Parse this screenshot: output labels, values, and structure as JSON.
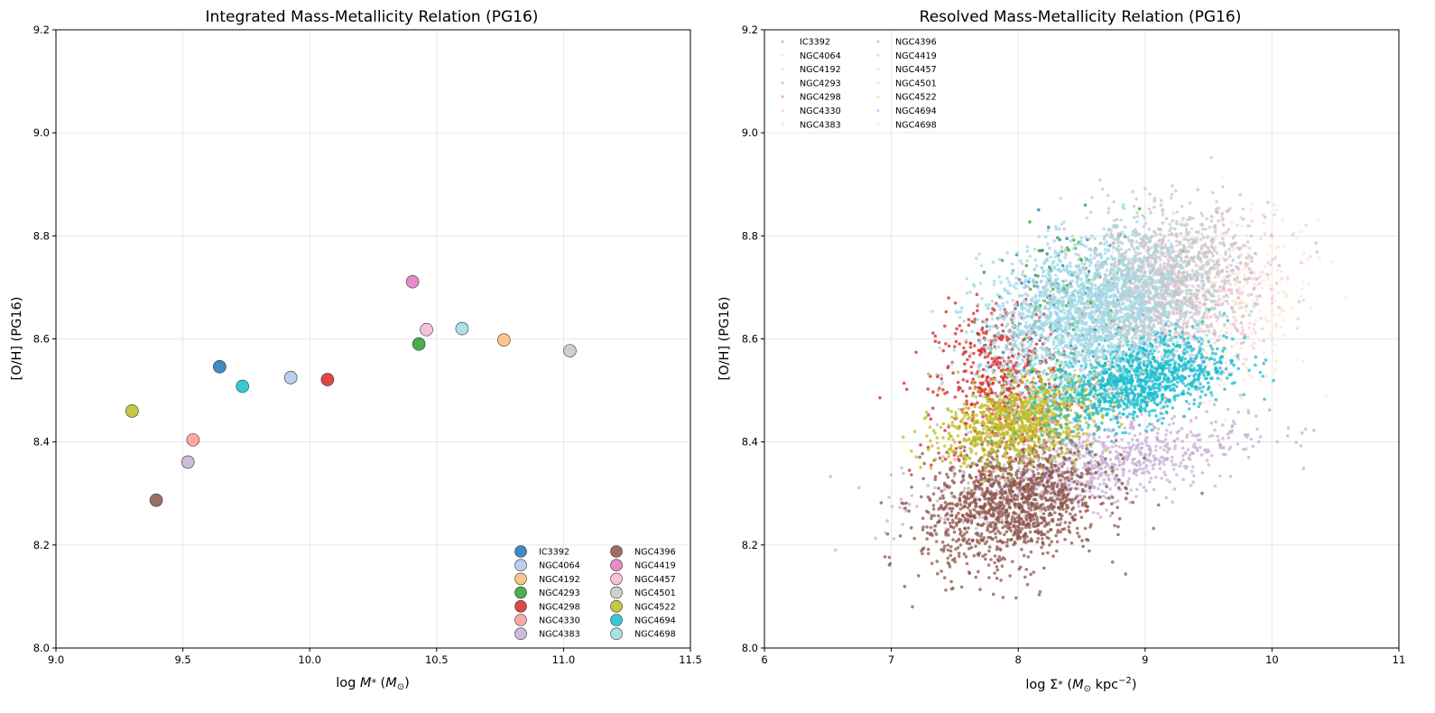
{
  "colors": {
    "IC3392": "#1f77b4",
    "NGC4064": "#aec7e8",
    "NGC4192": "#ffbb78",
    "NGC4293": "#2ca02c",
    "NGC4298": "#d62728",
    "NGC4330": "#ff9896",
    "NGC4383": "#c5b0d5",
    "NGC4396": "#8c564b",
    "NGC4419": "#e377c2",
    "NGC4457": "#f7b6d2",
    "NGC4501": "#c7c7c7",
    "NGC4522": "#bcbd22",
    "NGC4694": "#17becf",
    "NGC4698": "#9edae5"
  },
  "chart_data": [
    {
      "type": "scatter",
      "title": "Integrated Mass-Metallicity Relation (PG16)",
      "xlabel": "log M* (M☉)",
      "ylabel": "[O/H] (PG16)",
      "xlim": [
        9.0,
        11.5
      ],
      "ylim": [
        8.0,
        9.2
      ],
      "xticks": [
        "9.0",
        "9.5",
        "10.0",
        "10.5",
        "11.0",
        "11.5"
      ],
      "yticks": [
        "8.0",
        "8.2",
        "8.4",
        "8.6",
        "8.8",
        "9.0",
        "9.2"
      ],
      "grid": true,
      "legend_position": "lower-right",
      "series": [
        {
          "name": "IC3392",
          "x": 9.645,
          "y": 8.546
        },
        {
          "name": "NGC4064",
          "x": 9.925,
          "y": 8.525
        },
        {
          "name": "NGC4192",
          "x": 10.765,
          "y": 8.598
        },
        {
          "name": "NGC4293",
          "x": 10.43,
          "y": 8.59
        },
        {
          "name": "NGC4298",
          "x": 10.07,
          "y": 8.521
        },
        {
          "name": "NGC4330",
          "x": 9.54,
          "y": 8.404
        },
        {
          "name": "NGC4383",
          "x": 9.52,
          "y": 8.361
        },
        {
          "name": "NGC4396",
          "x": 9.395,
          "y": 8.287
        },
        {
          "name": "NGC4419",
          "x": 10.405,
          "y": 8.711
        },
        {
          "name": "NGC4457",
          "x": 10.46,
          "y": 8.618
        },
        {
          "name": "NGC4501",
          "x": 11.025,
          "y": 8.577
        },
        {
          "name": "NGC4522",
          "x": 9.3,
          "y": 8.46
        },
        {
          "name": "NGC4694",
          "x": 9.735,
          "y": 8.508
        },
        {
          "name": "NGC4698",
          "x": 10.6,
          "y": 8.62
        }
      ]
    },
    {
      "type": "scatter",
      "title": "Resolved Mass-Metallicity Relation (PG16)",
      "xlabel": "log Σ* (M☉ kpc⁻²)",
      "ylabel": "[O/H] (PG16)",
      "xlim": [
        6,
        11
      ],
      "ylim": [
        8.0,
        9.2
      ],
      "xticks": [
        "6",
        "7",
        "8",
        "9",
        "10",
        "11"
      ],
      "yticks": [
        "8.0",
        "8.2",
        "8.4",
        "8.6",
        "8.8",
        "9.0",
        "9.2"
      ],
      "grid": true,
      "legend_position": "upper-left",
      "series": [
        {
          "name": "IC3392",
          "center": [
            8.35,
            8.66
          ],
          "spread": [
            0.3,
            0.08
          ],
          "count": 90
        },
        {
          "name": "NGC4064",
          "center": [
            8.6,
            8.62
          ],
          "spread": [
            0.3,
            0.08
          ],
          "count": 120
        },
        {
          "name": "NGC4192",
          "center": [
            9.75,
            8.66
          ],
          "spread": [
            0.3,
            0.08
          ],
          "count": 260
        },
        {
          "name": "NGC4293",
          "center": [
            8.35,
            8.66
          ],
          "spread": [
            0.3,
            0.08
          ],
          "count": 110
        },
        {
          "name": "NGC4298",
          "center": [
            7.85,
            8.52
          ],
          "spread": [
            0.25,
            0.08
          ],
          "count": 520
        },
        {
          "name": "NGC4330",
          "center": [
            8.2,
            8.45
          ],
          "spread": [
            0.35,
            0.04
          ],
          "count": 160
        },
        {
          "name": "NGC4383",
          "center": [
            8.55,
            8.35
          ],
          "spread": [
            0.6,
            0.04
          ],
          "count": 900
        },
        {
          "name": "NGC4396",
          "center": [
            7.95,
            8.28
          ],
          "spread": [
            0.35,
            0.06
          ],
          "count": 1300
        },
        {
          "name": "NGC4419",
          "center": [
            9.4,
            8.68
          ],
          "spread": [
            0.35,
            0.07
          ],
          "count": 320
        },
        {
          "name": "NGC4457",
          "center": [
            9.3,
            8.67
          ],
          "spread": [
            0.3,
            0.08
          ],
          "count": 220
        },
        {
          "name": "NGC4501",
          "center": [
            9.1,
            8.7
          ],
          "spread": [
            0.35,
            0.07
          ],
          "count": 1400
        },
        {
          "name": "NGC4522",
          "center": [
            8.0,
            8.44
          ],
          "spread": [
            0.3,
            0.04
          ],
          "count": 900
        },
        {
          "name": "NGC4694",
          "center": [
            8.95,
            8.52
          ],
          "spread": [
            0.35,
            0.04
          ],
          "count": 1100
        },
        {
          "name": "NGC4698",
          "center": [
            8.5,
            8.65
          ],
          "spread": [
            0.4,
            0.07
          ],
          "count": 1700
        }
      ]
    }
  ]
}
